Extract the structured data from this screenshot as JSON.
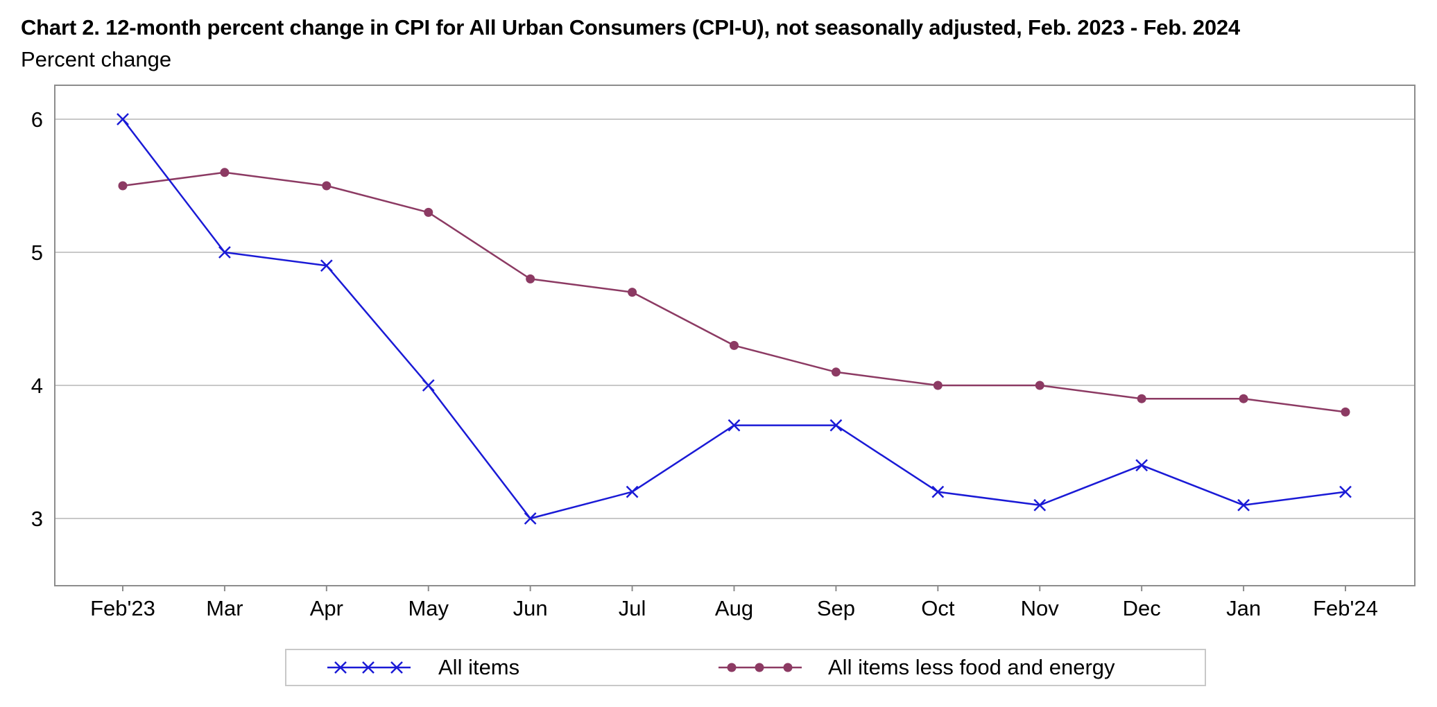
{
  "title": "Chart 2. 12-month percent change in CPI for All Urban Consumers (CPI-U), not seasonally adjusted, Feb. 2023 - Feb. 2024",
  "subtitle": "Percent change",
  "chart_data": {
    "type": "line",
    "title": "Chart 2. 12-month percent change in CPI for All Urban Consumers (CPI-U), not seasonally adjusted, Feb. 2023 - Feb. 2024",
    "ylabel": "Percent change",
    "xlabel": "",
    "categories": [
      "Feb'23",
      "Mar",
      "Apr",
      "May",
      "Jun",
      "Jul",
      "Aug",
      "Sep",
      "Oct",
      "Nov",
      "Dec",
      "Jan",
      "Feb'24"
    ],
    "ylim": [
      2.5,
      6.25
    ],
    "yticks": [
      3,
      4,
      5,
      6
    ],
    "grid": "horizontal",
    "legend_position": "bottom",
    "series": [
      {
        "name": "All items",
        "color": "#1a1ad6",
        "marker": "x",
        "values": [
          6.0,
          5.0,
          4.9,
          4.0,
          3.0,
          3.2,
          3.7,
          3.7,
          3.2,
          3.1,
          3.4,
          3.1,
          3.2
        ]
      },
      {
        "name": "All items less food and energy",
        "color": "#8c3a63",
        "marker": "circle",
        "values": [
          5.5,
          5.6,
          5.5,
          5.3,
          4.8,
          4.7,
          4.3,
          4.1,
          4.0,
          4.0,
          3.9,
          3.9,
          3.8
        ]
      }
    ]
  }
}
